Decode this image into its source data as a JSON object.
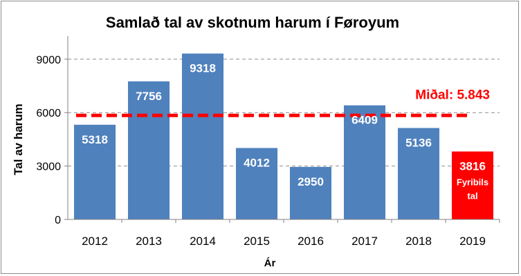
{
  "chart_data": {
    "type": "bar",
    "title": "Samlað tal av skotnum harum í Føroyum",
    "xlabel": "Ár",
    "ylabel": "Tal av harum",
    "categories": [
      "2012",
      "2013",
      "2014",
      "2015",
      "2016",
      "2017",
      "2018",
      "2019"
    ],
    "values": [
      5318,
      7756,
      9318,
      4012,
      2950,
      6409,
      5136,
      3816
    ],
    "data_labels": [
      "5318",
      "7756",
      "9318",
      "4012",
      "2950",
      "6409",
      "5136",
      "3816"
    ],
    "ylim": [
      0,
      10000
    ],
    "yticks": [
      0,
      3000,
      6000,
      9000
    ],
    "ytick_labels": [
      "0",
      "3000",
      "6000",
      "9000"
    ],
    "grid": true,
    "bar_color": "#4f81bd",
    "highlight": {
      "index": 7,
      "color": "#ff0000",
      "note": "Fyribils tal"
    },
    "average_line": {
      "value": 5843,
      "label": "Miðal: 5.843",
      "color": "#ff0000"
    }
  }
}
